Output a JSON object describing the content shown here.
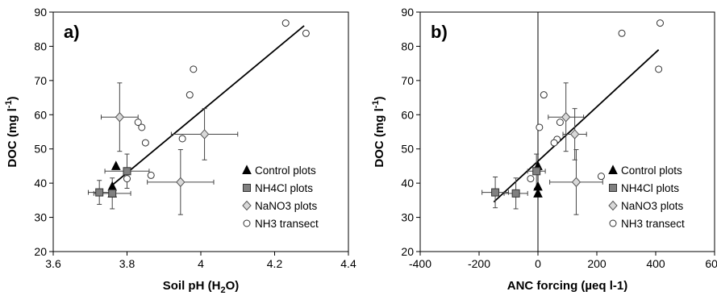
{
  "chart_data": [
    {
      "type": "scatter",
      "panel_label": "a)",
      "xlabel_main": "Soil pH (H",
      "xlabel_sub": "2",
      "xlabel_end": "O)",
      "ylabel_main": "DOC (mg l",
      "ylabel_sup": "-1",
      "ylabel_end": ")",
      "xlim": [
        3.6,
        4.4
      ],
      "ylim": [
        20,
        90
      ],
      "xticks": [
        3.6,
        3.8,
        4.0,
        4.2,
        4.4
      ],
      "xtick_labels": [
        "3.6",
        "3.8",
        "4",
        "4.2",
        "4.4"
      ],
      "yticks": [
        20,
        30,
        40,
        50,
        60,
        70,
        80,
        90
      ],
      "ytick_labels": [
        "20",
        "30",
        "40",
        "50",
        "60",
        "70",
        "80",
        "90"
      ],
      "legend_position": "bottom-right",
      "series": [
        {
          "name": "Control plots",
          "marker": "triangle",
          "points": [
            {
              "x": 3.77,
              "y": 45
            },
            {
              "x": 3.76,
              "y": 39
            },
            {
              "x": 3.76,
              "y": 37
            }
          ]
        },
        {
          "name": "NH4Cl plots",
          "marker": "square",
          "points": [
            {
              "x": 3.725,
              "y": 37.3,
              "xerr": 0.03,
              "yerr": 3.5
            },
            {
              "x": 3.76,
              "y": 37,
              "xerr": 0.05,
              "yerr": 4.5
            },
            {
              "x": 3.8,
              "y": 43.5,
              "xerr": 0.06,
              "yerr": 5
            }
          ]
        },
        {
          "name": "NaNO3 plots",
          "marker": "diamond",
          "points": [
            {
              "x": 3.78,
              "y": 59.3,
              "xerr": 0.05,
              "yerr": 10
            },
            {
              "x": 4.01,
              "y": 54.3,
              "xerr": 0.09,
              "yerr": 7.5
            },
            {
              "x": 3.945,
              "y": 40.3,
              "xerr": 0.09,
              "yerr": 9.5
            }
          ]
        },
        {
          "name": "NH3 transect",
          "marker": "circle",
          "points": [
            {
              "x": 3.83,
              "y": 57.8
            },
            {
              "x": 3.84,
              "y": 56.3
            },
            {
              "x": 3.85,
              "y": 51.8
            },
            {
              "x": 3.865,
              "y": 42.3
            },
            {
              "x": 3.8,
              "y": 41.3
            },
            {
              "x": 3.95,
              "y": 53
            },
            {
              "x": 3.97,
              "y": 65.8
            },
            {
              "x": 3.98,
              "y": 73.3
            },
            {
              "x": 4.23,
              "y": 86.8
            },
            {
              "x": 4.285,
              "y": 83.8
            }
          ]
        }
      ],
      "trendline": {
        "x": [
          3.755,
          4.28
        ],
        "y": [
          39,
          86
        ]
      }
    },
    {
      "type": "scatter",
      "panel_label": "b)",
      "xlabel_main": "ANC forcing (µeq l-1)",
      "ylabel_main": "DOC (mg l",
      "ylabel_sup": "-1",
      "ylabel_end": ")",
      "xlim": [
        -400,
        600
      ],
      "ylim": [
        20,
        90
      ],
      "xticks": [
        -400,
        -200,
        0,
        200,
        400,
        600
      ],
      "xtick_labels": [
        "-400",
        "-200",
        "0",
        "200",
        "400",
        "600"
      ],
      "yticks": [
        20,
        30,
        40,
        50,
        60,
        70,
        80,
        90
      ],
      "ytick_labels": [
        "20",
        "30",
        "40",
        "50",
        "60",
        "70",
        "80",
        "90"
      ],
      "legend_position": "bottom-right",
      "series": [
        {
          "name": "Control plots",
          "marker": "triangle",
          "points": [
            {
              "x": 0,
              "y": 45
            },
            {
              "x": 0,
              "y": 39
            },
            {
              "x": 0,
              "y": 37
            }
          ]
        },
        {
          "name": "NH4Cl plots",
          "marker": "square",
          "points": [
            {
              "x": -145,
              "y": 37.3,
              "xerr": 45,
              "yerr": 4.5
            },
            {
              "x": -75,
              "y": 37,
              "xerr": 40,
              "yerr": 4.5
            },
            {
              "x": -5,
              "y": 43.5,
              "xerr": 30,
              "yerr": 5
            }
          ]
        },
        {
          "name": "NaNO3 plots",
          "marker": "diamond",
          "points": [
            {
              "x": 95,
              "y": 59.3,
              "xerr": 60,
              "yerr": 10
            },
            {
              "x": 125,
              "y": 54.3,
              "xerr": 40,
              "yerr": 7.5
            },
            {
              "x": 130,
              "y": 40.3,
              "xerr": 90,
              "yerr": 9.5
            }
          ]
        },
        {
          "name": "NH3 transect",
          "marker": "circle",
          "points": [
            {
              "x": 20,
              "y": 65.8
            },
            {
              "x": 5,
              "y": 56.3
            },
            {
              "x": 65,
              "y": 52.8
            },
            {
              "x": 55,
              "y": 51.8
            },
            {
              "x": 75,
              "y": 57.8
            },
            {
              "x": -25,
              "y": 41.3
            },
            {
              "x": 215,
              "y": 42
            },
            {
              "x": 285,
              "y": 83.8
            },
            {
              "x": 410,
              "y": 73.3
            },
            {
              "x": 415,
              "y": 86.8
            }
          ]
        }
      ],
      "trendline": {
        "x": [
          -150,
          410
        ],
        "y": [
          34.5,
          79
        ]
      }
    }
  ]
}
